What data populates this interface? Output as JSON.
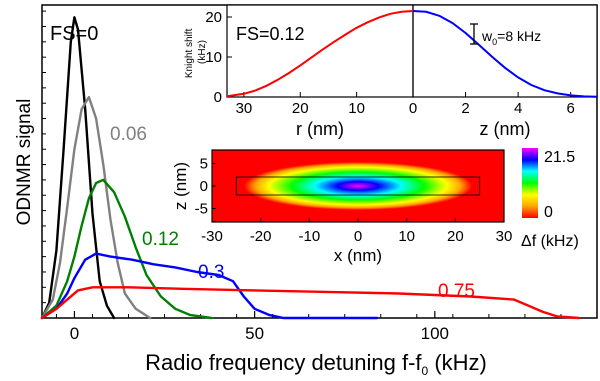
{
  "chart_data": [
    {
      "type": "line",
      "xlabel": "Radio frequency detuning f-f",
      "xlabel_sub": "0",
      "xlabel_unit": " (kHz)",
      "ylabel": "ODNMR signal",
      "xlim": [
        -9,
        145
      ],
      "ylim": [
        0,
        1.02
      ],
      "x_ticks": [
        0,
        50,
        100
      ],
      "y_ticks_labeled": false,
      "grid": false,
      "annotations": [
        "FS=0"
      ],
      "series": [
        {
          "name": "FS=0",
          "label": "",
          "color": "#000000",
          "points": [
            [
              -9,
              0
            ],
            [
              -7,
              0.05
            ],
            [
              -5,
              0.22
            ],
            [
              -3,
              0.55
            ],
            [
              -1,
              0.9
            ],
            [
              0,
              0.98
            ],
            [
              1,
              0.94
            ],
            [
              3,
              0.68
            ],
            [
              5,
              0.34
            ],
            [
              7,
              0.12
            ],
            [
              9,
              0.04
            ],
            [
              11,
              0
            ]
          ]
        },
        {
          "name": "0.06",
          "label": "0.06",
          "color": "#808080",
          "points": [
            [
              -9,
              0
            ],
            [
              -6,
              0.06
            ],
            [
              -4,
              0.18
            ],
            [
              -2,
              0.36
            ],
            [
              0,
              0.55
            ],
            [
              2,
              0.68
            ],
            [
              4,
              0.72
            ],
            [
              6,
              0.65
            ],
            [
              8,
              0.5
            ],
            [
              10,
              0.32
            ],
            [
              12,
              0.18
            ],
            [
              14,
              0.08
            ],
            [
              17,
              0.03
            ],
            [
              21,
              0
            ]
          ]
        },
        {
          "name": "0.12",
          "label": "0.12",
          "color": "#008000",
          "points": [
            [
              -9,
              0
            ],
            [
              -5,
              0.04
            ],
            [
              -2,
              0.12
            ],
            [
              0,
              0.2
            ],
            [
              2,
              0.3
            ],
            [
              4,
              0.39
            ],
            [
              6,
              0.44
            ],
            [
              8,
              0.45
            ],
            [
              11,
              0.41
            ],
            [
              14,
              0.33
            ],
            [
              17,
              0.23
            ],
            [
              20,
              0.14
            ],
            [
              24,
              0.07
            ],
            [
              28,
              0.03
            ],
            [
              32,
              0.01
            ],
            [
              38,
              0
            ]
          ]
        },
        {
          "name": "0.3",
          "label": "0.3",
          "color": "#0000ff",
          "points": [
            [
              -9,
              0
            ],
            [
              -5,
              0.03
            ],
            [
              -2,
              0.08
            ],
            [
              0,
              0.13
            ],
            [
              3,
              0.19
            ],
            [
              6,
              0.21
            ],
            [
              10,
              0.2
            ],
            [
              16,
              0.19
            ],
            [
              22,
              0.175
            ],
            [
              28,
              0.165
            ],
            [
              34,
              0.15
            ],
            [
              40,
              0.14
            ],
            [
              44,
              0.12
            ],
            [
              47,
              0.07
            ],
            [
              50,
              0.03
            ],
            [
              54,
              0.01
            ],
            [
              58,
              0
            ],
            [
              84,
              0
            ]
          ]
        },
        {
          "name": "0.75",
          "label": "0.75",
          "color": "#ff0000",
          "points": [
            [
              -9,
              0
            ],
            [
              -5,
              0.03
            ],
            [
              -2,
              0.06
            ],
            [
              1,
              0.09
            ],
            [
              5,
              0.1
            ],
            [
              15,
              0.1
            ],
            [
              30,
              0.095
            ],
            [
              50,
              0.09
            ],
            [
              70,
              0.085
            ],
            [
              90,
              0.08
            ],
            [
              110,
              0.07
            ],
            [
              122,
              0.06
            ],
            [
              126,
              0.04
            ],
            [
              130,
              0.02
            ],
            [
              134,
              0.005
            ],
            [
              140,
              0
            ]
          ]
        }
      ]
    },
    {
      "type": "line",
      "title": "FS=0.12",
      "panels": [
        {
          "xlabel": "r (nm)",
          "xlim": [
            33,
            0
          ],
          "x_ticks": [
            30,
            20,
            10,
            0
          ],
          "reversed": true,
          "color": "#ff0000"
        },
        {
          "xlabel": "z (nm)",
          "xlim": [
            0,
            7
          ],
          "x_ticks": [
            0,
            2,
            4,
            6
          ],
          "color": "#0000ff"
        }
      ],
      "ylabel": "Knight shift\n(kHz)",
      "ylim": [
        0,
        23
      ],
      "y_ticks": [
        0,
        10,
        20
      ],
      "scale_label": "w",
      "scale_label_sub": "0",
      "scale_label_rest": "=8 kHz",
      "scale_bar_khz": 8,
      "r_series": {
        "x": [
          33,
          30,
          28,
          26,
          24,
          22,
          20,
          18,
          16,
          14,
          12,
          10,
          8,
          6,
          4,
          2,
          0
        ],
        "y": [
          0.2,
          0.8,
          1.6,
          2.8,
          4.3,
          6.0,
          7.9,
          9.9,
          11.9,
          13.8,
          15.6,
          17.3,
          18.7,
          19.9,
          20.8,
          21.3,
          21.5
        ]
      },
      "z_series": {
        "x": [
          0,
          0.5,
          1,
          1.5,
          2,
          2.5,
          3,
          3.5,
          4,
          4.5,
          5,
          5.5,
          6,
          6.5,
          7
        ],
        "y": [
          21.5,
          21.3,
          20.3,
          18.5,
          16.0,
          13.1,
          10.1,
          7.3,
          4.9,
          3.0,
          1.7,
          0.9,
          0.4,
          0.15,
          0.05
        ]
      }
    },
    {
      "type": "heatmap",
      "xlabel": "x (nm)",
      "ylabel": "z (nm)",
      "xlim": [
        -30,
        30
      ],
      "ylim": [
        -8,
        8
      ],
      "x_ticks": [
        -30,
        -20,
        -10,
        0,
        10,
        20,
        30
      ],
      "y_ticks": [
        -5,
        0,
        5
      ],
      "colorbar_max": "21.5",
      "colorbar_min": "0",
      "colorbar_label": "Δf (kHz)",
      "colors": [
        "#ff0000",
        "#ffa500",
        "#ffff00",
        "#00ff00",
        "#00ffff",
        "#0000ff",
        "#ff00ff"
      ],
      "dot_region": {
        "x": [
          -25,
          25
        ],
        "z": [
          -2,
          2
        ]
      }
    }
  ]
}
